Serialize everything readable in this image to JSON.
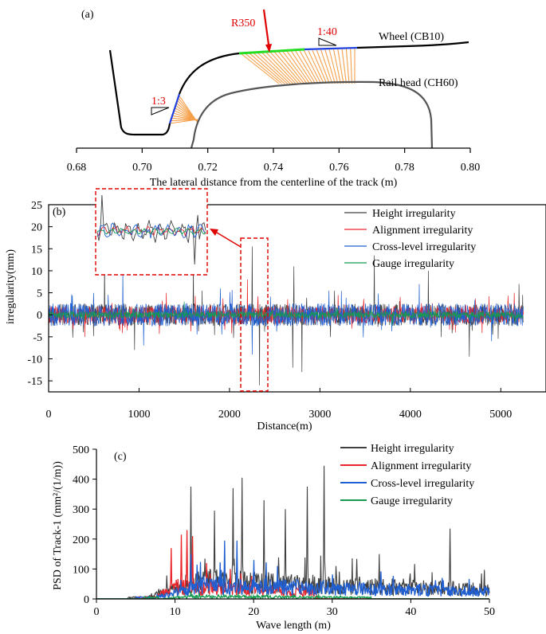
{
  "colors": {
    "height": "#404040",
    "alignment": "#e8262b",
    "cross_level": "#1f5fd1",
    "gauge": "#159a50",
    "contact": "#f5a04a",
    "annotation": "#e00000",
    "frame": "#000000"
  },
  "panel_a": {
    "label": "(a)",
    "xlabel": "The lateral distance from the centerline of the track (m)",
    "ticks": [
      "0.68",
      "0.70",
      "0.72",
      "0.74",
      "0.76",
      "0.78",
      "0.80"
    ],
    "xlim": [
      0.68,
      0.8
    ],
    "wheel_label": "Wheel (CB10)",
    "rail_label": "Rail head (CH60)",
    "radius_label": "R350",
    "slope_1": "1:40",
    "slope_2": "1:3"
  },
  "chart_data": [
    {
      "type": "line",
      "panel": "(b)",
      "title": "",
      "xlabel": "Distance(m)",
      "ylabel": "irregularity(mm)",
      "xlim": [
        0,
        5500
      ],
      "ylim": [
        -17.5,
        25
      ],
      "xticks": [
        "0",
        "1000",
        "2000",
        "3000",
        "4000",
        "5000"
      ],
      "yticks": [
        "-15",
        "-10",
        "-5",
        "0",
        "5",
        "10",
        "15",
        "20",
        "25"
      ],
      "series": [
        {
          "name": "Height irregularity",
          "color": "#404040",
          "amplitude": 2.5,
          "peaks": [
            [
              620,
              14
            ],
            [
              950,
              -8
            ],
            [
              1600,
              12
            ],
            [
              2250,
              15.5
            ],
            [
              2330,
              -16
            ],
            [
              2700,
              -12
            ],
            [
              2710,
              11
            ],
            [
              2800,
              -13
            ],
            [
              3600,
              13.5
            ],
            [
              4200,
              10
            ],
            [
              4650,
              -9.5
            ],
            [
              5200,
              7
            ]
          ]
        },
        {
          "name": "Alignment irregularity",
          "color": "#e8262b",
          "amplitude": 2.0,
          "peaks": [
            [
              400,
              -5
            ],
            [
              1300,
              5
            ],
            [
              2200,
              8
            ],
            [
              3200,
              4.5
            ],
            [
              4500,
              -4
            ],
            [
              5150,
              5
            ]
          ]
        },
        {
          "name": "Cross-level irregularity",
          "color": "#1f5fd1",
          "amplitude": 2.6,
          "peaks": [
            [
              820,
              10
            ],
            [
              1050,
              -7
            ],
            [
              1900,
              6
            ],
            [
              2250,
              -9
            ],
            [
              3100,
              5.5
            ],
            [
              4100,
              7
            ],
            [
              4900,
              -6
            ]
          ]
        },
        {
          "name": "Gauge irregularity",
          "color": "#159a50",
          "amplitude": 0.8,
          "peaks": [
            [
              1500,
              3
            ],
            [
              3800,
              -2.5
            ]
          ]
        }
      ],
      "zoom_window": {
        "x": [
          2150,
          2450
        ],
        "y": [
          -17,
          16
        ]
      }
    },
    {
      "type": "line",
      "panel": "(c)",
      "title": "",
      "xlabel": "Wave length (m)",
      "ylabel": "PSD of Track-1 (mm²/(1/m))",
      "xlim": [
        0,
        50
      ],
      "ylim": [
        0,
        500
      ],
      "xticks": [
        "0",
        "10",
        "20",
        "30",
        "40",
        "50"
      ],
      "yticks": [
        "0",
        "100",
        "200",
        "300",
        "400",
        "500"
      ],
      "series": [
        {
          "name": "Height irregularity",
          "color": "#404040",
          "band": [
            6,
            50
          ],
          "base": 60,
          "peaks": [
            [
              12,
              375
            ],
            [
              15,
              295
            ],
            [
              17.4,
              370
            ],
            [
              18.5,
              405
            ],
            [
              21.3,
              330
            ],
            [
              24,
              300
            ],
            [
              26.8,
              375
            ],
            [
              29,
              445
            ],
            [
              36,
              150
            ],
            [
              45,
              235
            ],
            [
              49,
              85
            ]
          ]
        },
        {
          "name": "Alignment irregularity",
          "color": "#e8262b",
          "band": [
            7,
            28
          ],
          "base": 40,
          "peaks": [
            [
              9.5,
              170
            ],
            [
              10.8,
              215
            ],
            [
              11.5,
              230
            ],
            [
              12.2,
              210
            ],
            [
              14,
              120
            ],
            [
              17,
              100
            ]
          ]
        },
        {
          "name": "Cross-level irregularity",
          "color": "#1f5fd1",
          "band": [
            7,
            50
          ],
          "base": 45,
          "peaks": [
            [
              12,
              150
            ],
            [
              16.3,
              195
            ],
            [
              17.9,
              195
            ],
            [
              20,
              130
            ],
            [
              23,
              110
            ],
            [
              31,
              45
            ],
            [
              39,
              40
            ],
            [
              45,
              30
            ]
          ]
        },
        {
          "name": "Gauge irregularity",
          "color": "#159a50",
          "band": [
            8,
            35
          ],
          "base": 8,
          "peaks": [
            [
              12,
              25
            ],
            [
              18,
              18
            ],
            [
              25,
              12
            ]
          ]
        }
      ]
    }
  ]
}
